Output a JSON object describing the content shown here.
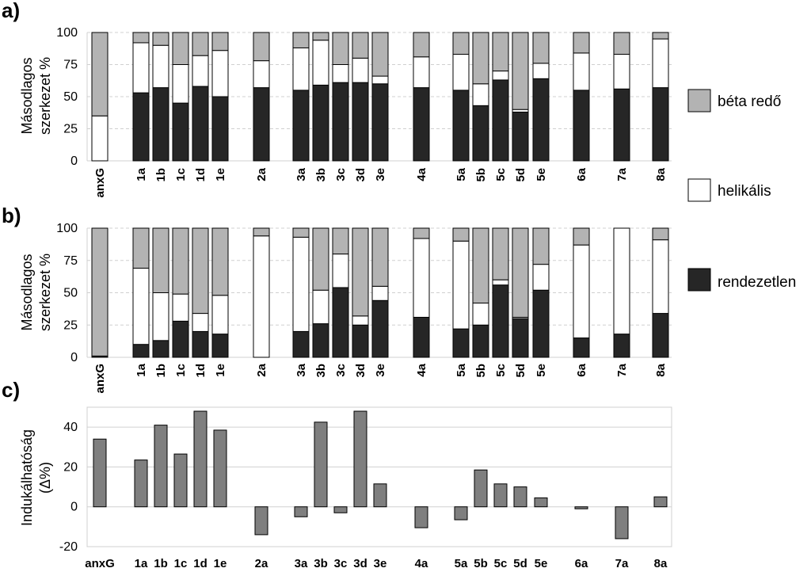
{
  "panels": [
    {
      "label": "a)",
      "ylabel_lines": [
        "Másodlagos",
        "szerkezet %"
      ]
    },
    {
      "label": "b)",
      "ylabel_lines": [
        "Másodlagos",
        "szerkezet %"
      ]
    },
    {
      "label": "c)",
      "ylabel_lines": [
        "Indukálhatóság",
        "(Δ%)"
      ]
    }
  ],
  "legend": [
    {
      "label": "béta redő",
      "color": "#b3b3b3"
    },
    {
      "label": "helikális",
      "color": "#ffffff"
    },
    {
      "label": "rendezetlen",
      "color": "#262626"
    }
  ],
  "chart_data": [
    {
      "type": "bar",
      "stacked": true,
      "title": "a)",
      "ylabel": "Másodlagos szerkezet %",
      "ylim": [
        0,
        100
      ],
      "yticks": [
        0,
        25,
        50,
        75,
        100
      ],
      "categories": [
        "anxG",
        "1a",
        "1b",
        "1c",
        "1d",
        "1e",
        "2a",
        "3a",
        "3b",
        "3c",
        "3d",
        "3e",
        "4a",
        "5a",
        "5b",
        "5c",
        "5d",
        "5e",
        "6a",
        "7a",
        "8a"
      ],
      "series": [
        {
          "name": "rendezetlen",
          "color": "#262626",
          "values": [
            0,
            53,
            57,
            45,
            58,
            50,
            57,
            55,
            59,
            61,
            61,
            60,
            57,
            55,
            43,
            63,
            38,
            64,
            55,
            56,
            57
          ]
        },
        {
          "name": "helikális",
          "color": "#ffffff",
          "values": [
            35,
            39,
            33,
            30,
            24,
            36,
            21,
            33,
            35,
            14,
            19,
            6,
            24,
            28,
            17,
            7,
            2,
            12,
            29,
            27,
            38
          ]
        },
        {
          "name": "béta redő",
          "color": "#b3b3b3",
          "values": [
            65,
            8,
            10,
            25,
            18,
            14,
            22,
            12,
            6,
            25,
            20,
            34,
            19,
            17,
            40,
            30,
            60,
            24,
            16,
            17,
            5
          ]
        }
      ]
    },
    {
      "type": "bar",
      "stacked": true,
      "title": "b)",
      "ylabel": "Másodlagos szerkezet %",
      "ylim": [
        0,
        100
      ],
      "yticks": [
        0,
        25,
        50,
        75,
        100
      ],
      "categories": [
        "anxG",
        "1a",
        "1b",
        "1c",
        "1d",
        "1e",
        "2a",
        "3a",
        "3b",
        "3c",
        "3d",
        "3e",
        "4a",
        "5a",
        "5b",
        "5c",
        "5d",
        "5e",
        "6a",
        "7a",
        "8a"
      ],
      "series": [
        {
          "name": "rendezetlen",
          "color": "#262626",
          "values": [
            1,
            10,
            13,
            28,
            20,
            18,
            0,
            20,
            26,
            54,
            25,
            44,
            31,
            22,
            25,
            56,
            30,
            52,
            15,
            18,
            34
          ]
        },
        {
          "name": "helikális",
          "color": "#ffffff",
          "values": [
            0,
            59,
            37,
            21,
            14,
            30,
            94,
            73,
            26,
            26,
            7,
            11,
            61,
            68,
            17,
            4,
            1,
            20,
            72,
            82,
            57
          ]
        },
        {
          "name": "béta redő",
          "color": "#b3b3b3",
          "values": [
            99,
            31,
            50,
            51,
            66,
            52,
            6,
            7,
            48,
            20,
            68,
            45,
            8,
            10,
            58,
            40,
            69,
            28,
            13,
            0,
            9
          ]
        }
      ]
    },
    {
      "type": "bar",
      "title": "c)",
      "ylabel": "Indukálhatóság (Δ%)",
      "ylim": [
        -20,
        50
      ],
      "yticks": [
        -20,
        0,
        20,
        40
      ],
      "categories": [
        "anxG",
        "1a",
        "1b",
        "1c",
        "1d",
        "1e",
        "2a",
        "3a",
        "3b",
        "3c",
        "3d",
        "3e",
        "4a",
        "5a",
        "5b",
        "5c",
        "5d",
        "5e",
        "6a",
        "7a",
        "8a"
      ],
      "series": [
        {
          "name": "Indukálhatóság",
          "color": "#7f7f7f",
          "values": [
            34,
            23.5,
            41,
            26.5,
            48,
            38.5,
            -14,
            -5,
            42.5,
            -3,
            48,
            11.5,
            -10.5,
            -6.5,
            18.5,
            11.5,
            10,
            4.5,
            -1,
            -16,
            5
          ]
        }
      ]
    }
  ]
}
